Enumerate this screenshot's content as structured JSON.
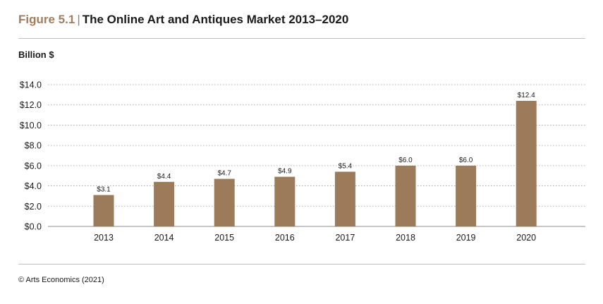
{
  "header": {
    "figure_label": "Figure 5.1",
    "separator": "|",
    "title": "The Online Art and Antiques Market 2013–2020"
  },
  "source": "© Arts Economics (2021)",
  "colors": {
    "bar": "#9c7b5b",
    "accent": "#a07e5e",
    "grid": "#9a9a9a",
    "rule": "#bdbdbd"
  },
  "chart_data": {
    "type": "bar",
    "title": "The Online Art and Antiques Market 2013–2020",
    "ylabel": "Billion $",
    "xlabel": "",
    "categories": [
      "2013",
      "2014",
      "2015",
      "2016",
      "2017",
      "2018",
      "2019",
      "2020"
    ],
    "values": [
      3.1,
      4.4,
      4.7,
      4.9,
      5.4,
      6.0,
      6.0,
      12.4
    ],
    "data_labels": [
      "$3.1",
      "$4.4",
      "$4.7",
      "$4.9",
      "$5.4",
      "$6.0",
      "$6.0",
      "$12.4"
    ],
    "ylim": [
      0,
      14
    ],
    "yticks": [
      0,
      2,
      4,
      6,
      8,
      10,
      12,
      14
    ],
    "ytick_labels": [
      "$0.0",
      "$2.0",
      "$4.0",
      "$6.0",
      "$8.0",
      "$10.0",
      "$12.0",
      "$14.0"
    ],
    "grid": true,
    "grid_style": "dotted",
    "legend": "none"
  }
}
